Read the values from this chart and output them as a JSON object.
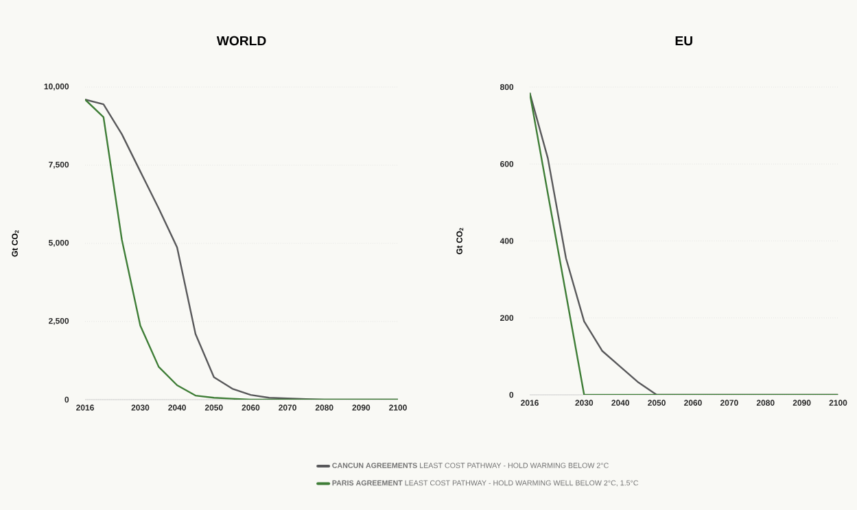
{
  "chart_data": [
    {
      "type": "line",
      "title": "WORLD",
      "ylabel": "Gt CO$_{2}$",
      "categories": [
        "2016",
        null,
        null,
        "2030",
        null,
        "2040",
        null,
        "2050",
        null,
        "2060",
        null,
        "2070",
        null,
        "2080",
        null,
        "2090",
        null,
        "2100"
      ],
      "series": [
        {
          "name": "**CANCUN AGREEMENTS** LEAST COST PATHWAY - HOLD WARMING BELOW 2°C",
          "color": "#58585a",
          "values": [
            9600,
            9450,
            8490,
            7300,
            6120,
            4870,
            2100,
            720,
            350,
            150,
            60,
            40,
            20,
            0,
            0,
            0,
            0,
            0
          ]
        },
        {
          "name": "**PARIS AGREEMENT** LEAST COST PATHWAY - HOLD WARMING WELL BELOW 2°C, 1.5°C",
          "color": "#3e7d36",
          "values": [
            9600,
            9040,
            5110,
            2370,
            1050,
            460,
            130,
            60,
            30,
            0,
            0,
            0,
            0,
            0,
            0,
            0,
            0,
            0
          ]
        }
      ],
      "ylim": [
        0,
        10000
      ],
      "yticks": [
        0,
        {
          "value": 2500,
          "label": "2,500"
        },
        {
          "value": 5000,
          "label": "5,000"
        },
        {
          "value": 7500,
          "label": "7,500"
        },
        {
          "value": 10000,
          "label": "10,000"
        }
      ],
      "grid": "y",
      "legend": "bottom",
      "line_style": "solid"
    },
    {
      "type": "line",
      "title": "EU",
      "ylabel": "Gt CO$_{2}$",
      "categories": [
        "2016",
        null,
        null,
        "2030",
        null,
        "2040",
        null,
        "2050",
        null,
        "2060",
        null,
        "2070",
        null,
        "2080",
        null,
        "2090",
        null,
        "2100"
      ],
      "series": [
        {
          "color": "#58585a",
          "values": [
            785,
            615,
            355,
            191,
            114,
            73,
            32,
            0,
            0,
            0,
            0,
            0,
            0,
            0,
            0,
            0,
            0,
            0
          ]
        },
        {
          "color": "#3e7d36",
          "values": [
            785,
            523,
            262,
            0,
            0,
            0,
            0,
            0,
            0,
            0,
            0,
            0,
            0,
            0,
            0,
            0,
            0,
            0
          ]
        }
      ],
      "ylim": [
        0,
        800
      ],
      "yticks": [
        0,
        200,
        400,
        600,
        800
      ],
      "grid": "y",
      "line_style": "solid"
    }
  ]
}
